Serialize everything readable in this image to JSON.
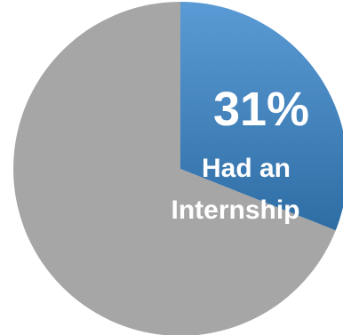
{
  "chart_data": {
    "type": "pie",
    "slices": [
      {
        "value": 31,
        "label_percent": "31%",
        "label_lines": [
          "Had an",
          "Internship"
        ],
        "color_top": "#5b9bd5",
        "color_bottom": "#2e6da4"
      },
      {
        "value": 69,
        "color": "#a6a6a6"
      }
    ],
    "start_angle_deg": 0,
    "direction": "clockwise",
    "legend": "none"
  }
}
